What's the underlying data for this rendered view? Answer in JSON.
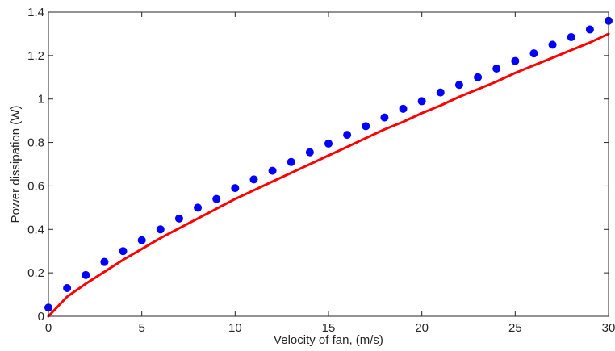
{
  "chart_data": {
    "type": "scatter",
    "xlabel": "Velocity of fan, (m/s)",
    "ylabel": "Power dissipation (W)",
    "xlim": [
      0,
      30
    ],
    "ylim": [
      0,
      1.4
    ],
    "xticks": [
      0,
      5,
      10,
      15,
      20,
      25,
      30
    ],
    "xtick_labels": [
      "0",
      "5",
      "10",
      "15",
      "20",
      "25",
      "30"
    ],
    "yticks": [
      0,
      0.2,
      0.4,
      0.6,
      0.8,
      1,
      1.2,
      1.4
    ],
    "ytick_labels": [
      "0",
      "0.2",
      "0.4",
      "0.6",
      "0.8",
      "1",
      "1.2",
      "1.4"
    ],
    "grid": false,
    "series": [
      {
        "style": "markers",
        "color": "#0000ff",
        "x": [
          0,
          1,
          2,
          3,
          4,
          5,
          6,
          7,
          8,
          9,
          10,
          11,
          12,
          13,
          14,
          15,
          16,
          17,
          18,
          19,
          20,
          21,
          22,
          23,
          24,
          25,
          26,
          27,
          28,
          29,
          30
        ],
        "y": [
          0.04,
          0.13,
          0.19,
          0.25,
          0.3,
          0.35,
          0.4,
          0.45,
          0.5,
          0.54,
          0.59,
          0.63,
          0.67,
          0.71,
          0.755,
          0.795,
          0.835,
          0.875,
          0.915,
          0.955,
          0.99,
          1.03,
          1.065,
          1.1,
          1.14,
          1.175,
          1.21,
          1.25,
          1.285,
          1.32,
          1.36
        ]
      },
      {
        "style": "line",
        "color": "#ff0000",
        "x": [
          0,
          1,
          2,
          3,
          4,
          5,
          6,
          7,
          8,
          9,
          10,
          11,
          12,
          13,
          14,
          15,
          16,
          17,
          18,
          19,
          20,
          21,
          22,
          23,
          24,
          25,
          26,
          27,
          28,
          29,
          30
        ],
        "y": [
          0,
          0.09,
          0.15,
          0.205,
          0.26,
          0.31,
          0.36,
          0.405,
          0.45,
          0.495,
          0.54,
          0.58,
          0.62,
          0.66,
          0.7,
          0.74,
          0.78,
          0.82,
          0.86,
          0.895,
          0.935,
          0.97,
          1.01,
          1.045,
          1.08,
          1.12,
          1.155,
          1.19,
          1.225,
          1.26,
          1.3
        ]
      }
    ]
  }
}
